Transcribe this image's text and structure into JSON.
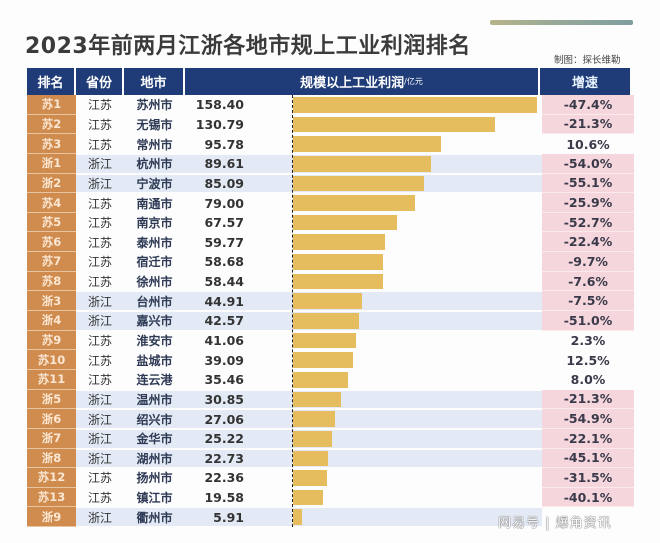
{
  "header": {
    "title": "2023年前两月江浙各地市规上工业利润排名",
    "credit": "制图：探长维勒"
  },
  "columns": {
    "rank": "排名",
    "province": "省份",
    "city": "地市",
    "profit": "规模以上工业利润",
    "profit_unit": "/亿元",
    "growth": "增速"
  },
  "colors": {
    "header_bg": "#1f3c78",
    "rank_bg": "#cf8c4e",
    "bar": "#e6bd5e",
    "zhejiang_row_bg": "#e3eaf5",
    "negative_growth_bg": "#f5d6dc"
  },
  "rows": [
    {
      "rank": "苏1",
      "province": "江苏",
      "city": "苏州市",
      "profit": "158.40",
      "growth": "-47.4%"
    },
    {
      "rank": "苏2",
      "province": "江苏",
      "city": "无锡市",
      "profit": "130.79",
      "growth": "-21.3%"
    },
    {
      "rank": "苏3",
      "province": "江苏",
      "city": "常州市",
      "profit": "95.78",
      "growth": "10.6%"
    },
    {
      "rank": "浙1",
      "province": "浙江",
      "city": "杭州市",
      "profit": "89.61",
      "growth": "-54.0%"
    },
    {
      "rank": "浙2",
      "province": "浙江",
      "city": "宁波市",
      "profit": "85.09",
      "growth": "-55.1%"
    },
    {
      "rank": "苏4",
      "province": "江苏",
      "city": "南通市",
      "profit": "79.00",
      "growth": "-25.9%"
    },
    {
      "rank": "苏5",
      "province": "江苏",
      "city": "南京市",
      "profit": "67.57",
      "growth": "-52.7%"
    },
    {
      "rank": "苏6",
      "province": "江苏",
      "city": "泰州市",
      "profit": "59.77",
      "growth": "-22.4%"
    },
    {
      "rank": "苏7",
      "province": "江苏",
      "city": "宿迁市",
      "profit": "58.68",
      "growth": "-9.7%"
    },
    {
      "rank": "苏8",
      "province": "江苏",
      "city": "徐州市",
      "profit": "58.44",
      "growth": "-7.6%"
    },
    {
      "rank": "浙3",
      "province": "浙江",
      "city": "台州市",
      "profit": "44.91",
      "growth": "-7.5%"
    },
    {
      "rank": "浙4",
      "province": "浙江",
      "city": "嘉兴市",
      "profit": "42.57",
      "growth": "-51.0%"
    },
    {
      "rank": "苏9",
      "province": "江苏",
      "city": "淮安市",
      "profit": "41.06",
      "growth": "2.3%"
    },
    {
      "rank": "苏10",
      "province": "江苏",
      "city": "盐城市",
      "profit": "39.09",
      "growth": "12.5%"
    },
    {
      "rank": "苏11",
      "province": "江苏",
      "city": "连云港",
      "profit": "35.46",
      "growth": "8.0%"
    },
    {
      "rank": "浙5",
      "province": "浙江",
      "city": "温州市",
      "profit": "30.85",
      "growth": "-21.3%"
    },
    {
      "rank": "浙6",
      "province": "浙江",
      "city": "绍兴市",
      "profit": "27.06",
      "growth": "-54.9%"
    },
    {
      "rank": "浙7",
      "province": "浙江",
      "city": "金华市",
      "profit": "25.22",
      "growth": "-22.1%"
    },
    {
      "rank": "浙8",
      "province": "浙江",
      "city": "湖州市",
      "profit": "22.73",
      "growth": "-45.1%"
    },
    {
      "rank": "苏12",
      "province": "江苏",
      "city": "扬州市",
      "profit": "22.36",
      "growth": "-31.5%"
    },
    {
      "rank": "苏13",
      "province": "江苏",
      "city": "镇江市",
      "profit": "19.58",
      "growth": "-40.1%"
    },
    {
      "rank": "浙9",
      "province": "浙江",
      "city": "衢州市",
      "profit": "5.91",
      "growth": ""
    }
  ],
  "watermark": "网易号 | 爆角资讯",
  "chart_data": {
    "type": "bar",
    "orientation": "horizontal",
    "title": "2023年前两月江浙各地市规上工业利润排名",
    "xlabel": "规模以上工业利润/亿元",
    "ylabel": "地市",
    "categories": [
      "苏州市",
      "无锡市",
      "常州市",
      "杭州市",
      "宁波市",
      "南通市",
      "南京市",
      "泰州市",
      "宿迁市",
      "徐州市",
      "台州市",
      "嘉兴市",
      "淮安市",
      "盐城市",
      "连云港",
      "温州市",
      "绍兴市",
      "金华市",
      "湖州市",
      "扬州市",
      "镇江市",
      "衢州市"
    ],
    "series": [
      {
        "name": "规模以上工业利润(亿元)",
        "values": [
          158.4,
          130.79,
          95.78,
          89.61,
          85.09,
          79.0,
          67.57,
          59.77,
          58.68,
          58.44,
          44.91,
          42.57,
          41.06,
          39.09,
          35.46,
          30.85,
          27.06,
          25.22,
          22.73,
          22.36,
          19.58,
          5.91
        ]
      },
      {
        "name": "增速(%)",
        "values": [
          -47.4,
          -21.3,
          10.6,
          -54.0,
          -55.1,
          -25.9,
          -52.7,
          -22.4,
          -9.7,
          -7.6,
          -7.5,
          -51.0,
          2.3,
          12.5,
          8.0,
          -21.3,
          -54.9,
          -22.1,
          -45.1,
          -31.5,
          -40.1,
          null
        ]
      }
    ],
    "provinces": [
      "江苏",
      "江苏",
      "江苏",
      "浙江",
      "浙江",
      "江苏",
      "江苏",
      "江苏",
      "江苏",
      "江苏",
      "浙江",
      "浙江",
      "江苏",
      "江苏",
      "江苏",
      "浙江",
      "浙江",
      "浙江",
      "浙江",
      "江苏",
      "江苏",
      "浙江"
    ],
    "ranks": [
      "苏1",
      "苏2",
      "苏3",
      "浙1",
      "浙2",
      "苏4",
      "苏5",
      "苏6",
      "苏7",
      "苏8",
      "浙3",
      "浙4",
      "苏9",
      "苏10",
      "苏11",
      "浙5",
      "浙6",
      "浙7",
      "浙8",
      "苏12",
      "苏13",
      "浙9"
    ],
    "xlim": [
      0,
      160
    ],
    "legend": "none",
    "grid": false
  }
}
